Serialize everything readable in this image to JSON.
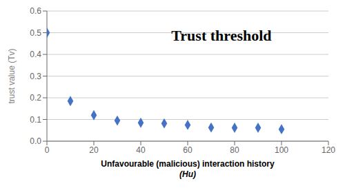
{
  "chart_data": {
    "type": "scatter",
    "title": "Trust threshold",
    "xlabel": "Unfavourable (malicious) interaction history\n(Hu)",
    "ylabel": "trust value (Tv)",
    "x": [
      0,
      10,
      20,
      30,
      40,
      50,
      60,
      70,
      80,
      90,
      100
    ],
    "values": [
      0.5,
      0.185,
      0.12,
      0.095,
      0.085,
      0.082,
      0.075,
      0.063,
      0.062,
      0.062,
      0.055
    ],
    "color": "#4472C4",
    "marker": "diamond",
    "xlim": [
      0,
      120
    ],
    "ylim": [
      0,
      0.6
    ],
    "xticks": [
      0,
      20,
      40,
      60,
      80,
      100,
      120
    ],
    "yticks": [
      {
        "value": 0,
        "label": "0.0"
      },
      0.1,
      0.2,
      0.3,
      0.4,
      0.5,
      0.6
    ],
    "grid": true
  }
}
